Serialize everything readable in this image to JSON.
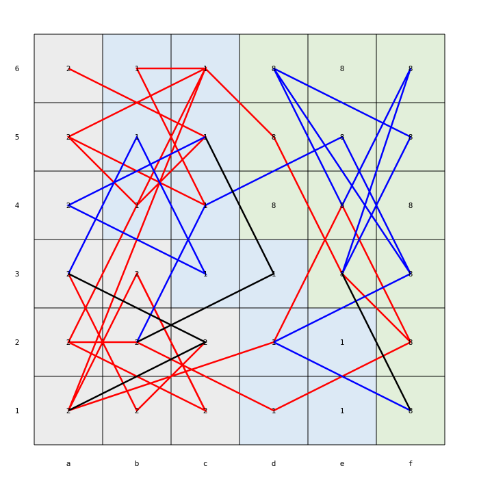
{
  "board": {
    "columns": [
      "a",
      "b",
      "c",
      "d",
      "e",
      "f"
    ],
    "rows": [
      "1",
      "2",
      "3",
      "4",
      "5",
      "6"
    ],
    "region_colors": {
      "gray": "#ececec",
      "blue": "#dce9f5",
      "green": "#e2efda"
    },
    "cells": [
      {
        "col": "a",
        "row": "6",
        "value": "2",
        "region": "gray"
      },
      {
        "col": "b",
        "row": "6",
        "value": "1",
        "region": "blue"
      },
      {
        "col": "c",
        "row": "6",
        "value": "1",
        "region": "blue"
      },
      {
        "col": "d",
        "row": "6",
        "value": "8",
        "region": "green"
      },
      {
        "col": "e",
        "row": "6",
        "value": "8",
        "region": "green"
      },
      {
        "col": "f",
        "row": "6",
        "value": "8",
        "region": "green"
      },
      {
        "col": "a",
        "row": "5",
        "value": "2",
        "region": "gray"
      },
      {
        "col": "b",
        "row": "5",
        "value": "1",
        "region": "blue"
      },
      {
        "col": "c",
        "row": "5",
        "value": "1",
        "region": "blue"
      },
      {
        "col": "d",
        "row": "5",
        "value": "8",
        "region": "green"
      },
      {
        "col": "e",
        "row": "5",
        "value": "8",
        "region": "green"
      },
      {
        "col": "f",
        "row": "5",
        "value": "8",
        "region": "green"
      },
      {
        "col": "a",
        "row": "4",
        "value": "2",
        "region": "gray"
      },
      {
        "col": "b",
        "row": "4",
        "value": "1",
        "region": "blue"
      },
      {
        "col": "c",
        "row": "4",
        "value": "1",
        "region": "blue"
      },
      {
        "col": "d",
        "row": "4",
        "value": "8",
        "region": "green"
      },
      {
        "col": "e",
        "row": "4",
        "value": "8",
        "region": "green"
      },
      {
        "col": "f",
        "row": "4",
        "value": "8",
        "region": "green"
      },
      {
        "col": "a",
        "row": "3",
        "value": "2",
        "region": "gray"
      },
      {
        "col": "b",
        "row": "3",
        "value": "2",
        "region": "gray"
      },
      {
        "col": "c",
        "row": "3",
        "value": "1",
        "region": "blue"
      },
      {
        "col": "d",
        "row": "3",
        "value": "1",
        "region": "blue"
      },
      {
        "col": "e",
        "row": "3",
        "value": "8",
        "region": "green"
      },
      {
        "col": "f",
        "row": "3",
        "value": "8",
        "region": "green"
      },
      {
        "col": "a",
        "row": "2",
        "value": "2",
        "region": "gray"
      },
      {
        "col": "b",
        "row": "2",
        "value": "2",
        "region": "gray"
      },
      {
        "col": "c",
        "row": "2",
        "value": "2",
        "region": "gray"
      },
      {
        "col": "d",
        "row": "2",
        "value": "1",
        "region": "blue"
      },
      {
        "col": "e",
        "row": "2",
        "value": "1",
        "region": "blue"
      },
      {
        "col": "f",
        "row": "2",
        "value": "8",
        "region": "green"
      },
      {
        "col": "a",
        "row": "1",
        "value": "2",
        "region": "gray"
      },
      {
        "col": "b",
        "row": "1",
        "value": "2",
        "region": "gray"
      },
      {
        "col": "c",
        "row": "1",
        "value": "2",
        "region": "gray"
      },
      {
        "col": "d",
        "row": "1",
        "value": "1",
        "region": "blue"
      },
      {
        "col": "e",
        "row": "1",
        "value": "1",
        "region": "blue"
      },
      {
        "col": "f",
        "row": "1",
        "value": "8",
        "region": "green"
      }
    ],
    "paths": [
      {
        "color": "#ff0000",
        "points": [
          "a6",
          "c5",
          "b4",
          "a5",
          "c6",
          "a2",
          "c1",
          "b3",
          "a1",
          "c6",
          "b6",
          "c4",
          "a5"
        ]
      },
      {
        "color": "#ff0000",
        "points": [
          "c6",
          "d5",
          "e3",
          "f2",
          "e4",
          "d2",
          "a1"
        ]
      },
      {
        "color": "#ff0000",
        "points": [
          "a3",
          "b1",
          "c2"
        ]
      },
      {
        "color": "#ff0000",
        "points": [
          "a2",
          "b2",
          "d1",
          "f2"
        ]
      },
      {
        "color": "#ff0000",
        "points": [
          "b3",
          "c1"
        ]
      },
      {
        "color": "#0000ff",
        "points": [
          "a3",
          "b5",
          "c3",
          "a4",
          "c5"
        ]
      },
      {
        "color": "#0000ff",
        "points": [
          "b2",
          "c4",
          "e5",
          "f3",
          "d6",
          "e4",
          "f6"
        ]
      },
      {
        "color": "#0000ff",
        "points": [
          "d6",
          "f5",
          "e3",
          "f6"
        ]
      },
      {
        "color": "#0000ff",
        "points": [
          "d2",
          "f3"
        ]
      },
      {
        "color": "#0000ff",
        "points": [
          "d2",
          "f1"
        ]
      },
      {
        "color": "#000000",
        "points": [
          "a3",
          "c2",
          "a1"
        ]
      },
      {
        "color": "#000000",
        "points": [
          "c5",
          "d3",
          "b2"
        ]
      },
      {
        "color": "#000000",
        "points": [
          "e3",
          "f1"
        ]
      }
    ]
  }
}
